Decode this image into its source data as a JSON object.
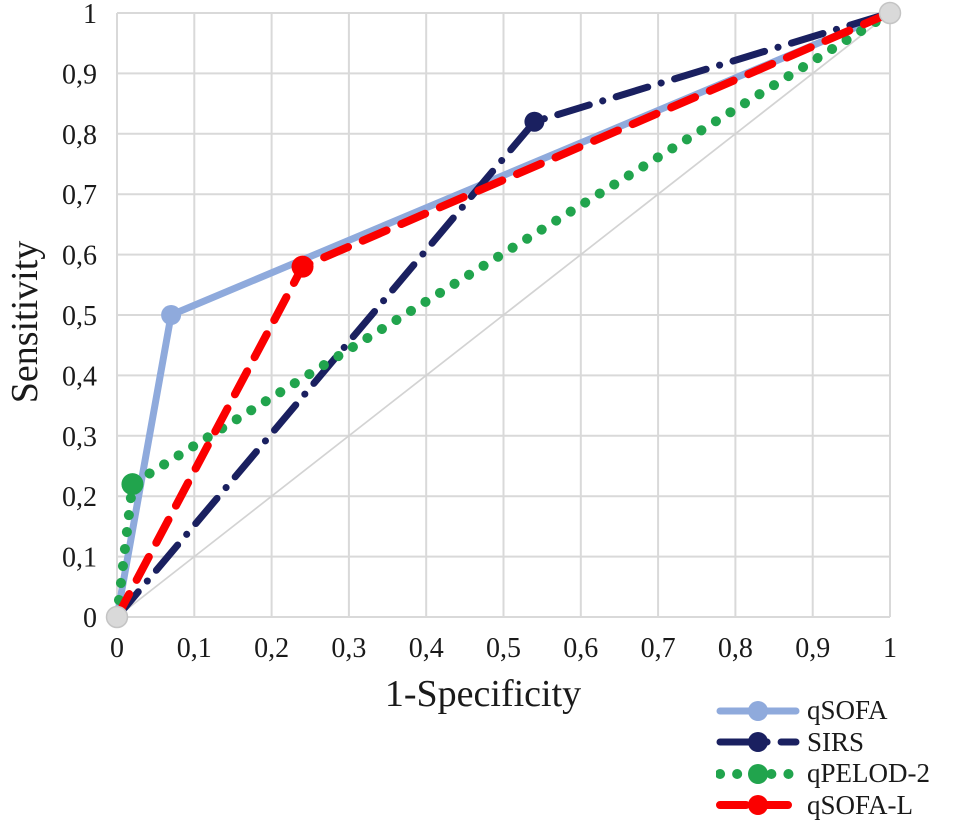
{
  "chart_data": {
    "type": "line",
    "subtype": "roc-curves",
    "title": "",
    "xlabel": "1-Specificity",
    "ylabel": "Sensitivity",
    "xlim": [
      0,
      1
    ],
    "ylim": [
      0,
      1
    ],
    "grid": true,
    "decimal_separator": ",",
    "x_ticks": [
      {
        "value": 0.0,
        "label": "0"
      },
      {
        "value": 0.1,
        "label": "0,1"
      },
      {
        "value": 0.2,
        "label": "0,2"
      },
      {
        "value": 0.3,
        "label": "0,3"
      },
      {
        "value": 0.4,
        "label": "0,4"
      },
      {
        "value": 0.5,
        "label": "0,5"
      },
      {
        "value": 0.6,
        "label": "0,6"
      },
      {
        "value": 0.7,
        "label": "0,7"
      },
      {
        "value": 0.8,
        "label": "0,8"
      },
      {
        "value": 0.9,
        "label": "0,9"
      },
      {
        "value": 1.0,
        "label": "1"
      }
    ],
    "y_ticks": [
      {
        "value": 0.0,
        "label": "0"
      },
      {
        "value": 0.1,
        "label": "0,1"
      },
      {
        "value": 0.2,
        "label": "0,2"
      },
      {
        "value": 0.3,
        "label": "0,3"
      },
      {
        "value": 0.4,
        "label": "0,4"
      },
      {
        "value": 0.5,
        "label": "0,5"
      },
      {
        "value": 0.6,
        "label": "0,6"
      },
      {
        "value": 0.7,
        "label": "0,7"
      },
      {
        "value": 0.8,
        "label": "0,8"
      },
      {
        "value": 0.9,
        "label": "0,9"
      },
      {
        "value": 1.0,
        "label": "1"
      }
    ],
    "reference_line": {
      "points": [
        [
          0,
          0
        ],
        [
          1,
          1
        ]
      ],
      "color": "#d3d3d3",
      "width": 1.7,
      "endpoint_marker_fill": "#d9d9d9",
      "endpoint_marker_stroke": "#c4c4c4",
      "endpoint_marker_radius": 10.5
    },
    "series": [
      {
        "name": "qSOFA",
        "color": "#8faadc",
        "style": "solid",
        "width": 7,
        "points": [
          [
            0,
            0
          ],
          [
            0.07,
            0.5
          ],
          [
            1,
            1
          ]
        ],
        "operating_point": [
          0.07,
          0.5
        ],
        "marker_radius": 10
      },
      {
        "name": "SIRS",
        "color": "#1a2060",
        "style": "dash-dot",
        "width": 7,
        "points": [
          [
            0,
            0
          ],
          [
            0.54,
            0.82
          ],
          [
            1,
            1
          ]
        ],
        "operating_point": [
          0.54,
          0.82
        ],
        "marker_radius": 10
      },
      {
        "name": "qPELOD-2",
        "color": "#21a44d",
        "style": "dot",
        "width": 10,
        "points": [
          [
            0,
            0
          ],
          [
            0.02,
            0.22
          ],
          [
            1,
            1
          ]
        ],
        "operating_point": [
          0.02,
          0.22
        ],
        "marker_radius": 11
      },
      {
        "name": "qSOFA-L",
        "color": "#fb0000",
        "style": "dash",
        "width": 8,
        "points": [
          [
            0,
            0
          ],
          [
            0.24,
            0.58
          ],
          [
            1,
            1
          ]
        ],
        "operating_point": [
          0.24,
          0.58
        ],
        "marker_radius": 11
      }
    ],
    "colors": {
      "grid": "#d9d9d9",
      "text": "#1a1a1a",
      "background": "#ffffff"
    },
    "legend": {
      "position": "bottom-right",
      "entries": [
        "qSOFA",
        "SIRS",
        "qPELOD-2",
        "qSOFA-L"
      ]
    }
  }
}
